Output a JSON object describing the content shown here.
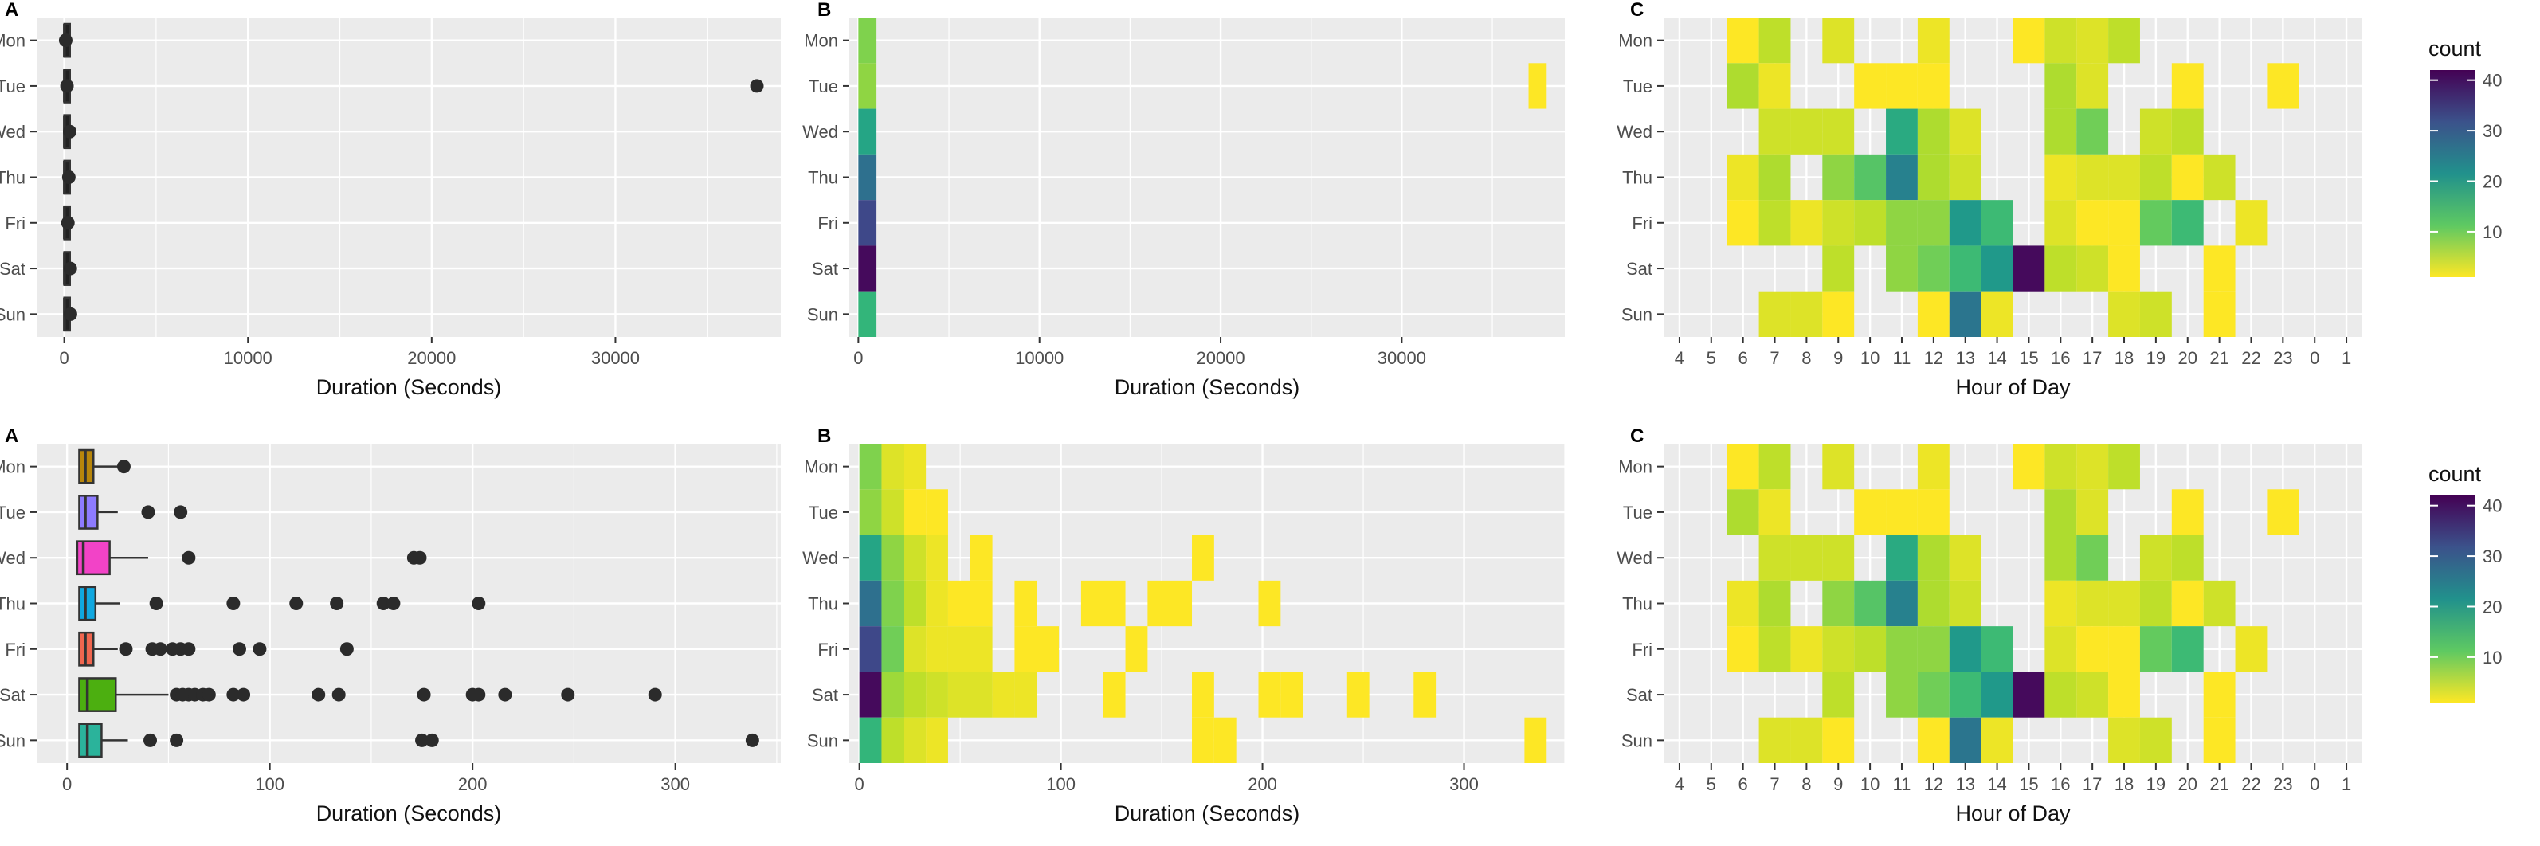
{
  "chart_data": [
    {
      "panel": "A",
      "type": "boxplot",
      "xlabel": "Duration (Seconds)",
      "xlim": [
        -1500,
        39000
      ],
      "xticks": [
        0,
        10000,
        20000,
        30000
      ],
      "categories": [
        "Mon",
        "Tue",
        "Wed",
        "Thu",
        "Fri",
        "Sat",
        "Sun"
      ],
      "boxes": [
        {
          "day": "Mon",
          "q1": 6,
          "median": 9,
          "q3": 13,
          "whisker_high": 27,
          "color": "#222222"
        },
        {
          "day": "Tue",
          "q1": 6,
          "median": 9,
          "q3": 14,
          "whisker_high": 25,
          "color": "#222222"
        },
        {
          "day": "Wed",
          "q1": 5,
          "median": 9,
          "q3": 21,
          "whisker_high": 40,
          "color": "#222222"
        },
        {
          "day": "Thu",
          "q1": 6,
          "median": 9,
          "q3": 14,
          "whisker_high": 26,
          "color": "#222222"
        },
        {
          "day": "Fri",
          "q1": 6,
          "median": 9,
          "q3": 13,
          "whisker_high": 25,
          "color": "#222222"
        },
        {
          "day": "Sat",
          "q1": 6,
          "median": 10,
          "q3": 24,
          "whisker_high": 50,
          "color": "#222222"
        },
        {
          "day": "Sun",
          "q1": 6,
          "median": 10,
          "q3": 17,
          "whisker_high": 30,
          "color": "#222222"
        }
      ],
      "outliers": [
        {
          "day": "Mon",
          "x": 80
        },
        {
          "day": "Tue",
          "x": 150
        },
        {
          "day": "Tue",
          "x": 37700
        },
        {
          "day": "Wed",
          "x": 300
        },
        {
          "day": "Thu",
          "x": 250
        },
        {
          "day": "Fri",
          "x": 200
        },
        {
          "day": "Sat",
          "x": 330
        },
        {
          "day": "Sun",
          "x": 340
        }
      ]
    },
    {
      "panel": "B",
      "type": "heatmap",
      "xlabel": "Duration (Seconds)",
      "xlim": [
        -500,
        39000
      ],
      "xticks": [
        0,
        10000,
        20000,
        30000
      ],
      "categories": [
        "Mon",
        "Tue",
        "Wed",
        "Thu",
        "Fri",
        "Sat",
        "Sun"
      ],
      "bin_width": 1000,
      "count_range": [
        1,
        42
      ],
      "cells": [
        {
          "day": "Mon",
          "x0": 0,
          "count": 9
        },
        {
          "day": "Tue",
          "x0": 0,
          "count": 8
        },
        {
          "day": "Wed",
          "x0": 0,
          "count": 18
        },
        {
          "day": "Thu",
          "x0": 0,
          "count": 27
        },
        {
          "day": "Fri",
          "x0": 0,
          "count": 33
        },
        {
          "day": "Sat",
          "x0": 0,
          "count": 41
        },
        {
          "day": "Sun",
          "x0": 0,
          "count": 15
        },
        {
          "day": "Tue",
          "x0": 37000,
          "count": 1
        }
      ]
    },
    {
      "panel": "C",
      "type": "heatmap",
      "xlabel": "Hour of Day",
      "hours": [
        "4",
        "5",
        "6",
        "7",
        "8",
        "9",
        "10",
        "11",
        "12",
        "13",
        "14",
        "15",
        "16",
        "17",
        "18",
        "19",
        "20",
        "21",
        "22",
        "23",
        "0",
        "1"
      ],
      "categories": [
        "Mon",
        "Tue",
        "Wed",
        "Thu",
        "Fri",
        "Sat",
        "Sun"
      ],
      "count_range": [
        1,
        42
      ],
      "counts": {
        "Mon": [
          0,
          0,
          1,
          5,
          0,
          3,
          0,
          0,
          2,
          0,
          0,
          1,
          4,
          3,
          5,
          0,
          0,
          0,
          0,
          0,
          0,
          0
        ],
        "Tue": [
          0,
          0,
          6,
          2,
          0,
          0,
          1,
          1,
          1,
          0,
          0,
          0,
          6,
          3,
          0,
          0,
          1,
          0,
          0,
          1,
          0,
          0
        ],
        "Wed": [
          0,
          0,
          0,
          4,
          4,
          4,
          0,
          17,
          6,
          3,
          0,
          0,
          6,
          10,
          0,
          4,
          5,
          0,
          0,
          0,
          0,
          0
        ],
        "Thu": [
          0,
          0,
          2,
          6,
          0,
          8,
          12,
          24,
          6,
          4,
          0,
          0,
          2,
          3,
          3,
          5,
          1,
          4,
          0,
          0,
          0,
          0
        ],
        "Fri": [
          0,
          0,
          1,
          5,
          2,
          4,
          5,
          8,
          8,
          20,
          14,
          0,
          3,
          1,
          1,
          11,
          14,
          0,
          2,
          0,
          0,
          0
        ],
        "Sat": [
          0,
          0,
          0,
          0,
          0,
          5,
          0,
          8,
          10,
          14,
          20,
          41,
          5,
          4,
          1,
          0,
          0,
          1,
          0,
          0,
          0,
          0
        ],
        "Sun": [
          0,
          0,
          0,
          3,
          3,
          1,
          0,
          0,
          1,
          26,
          2,
          0,
          0,
          0,
          3,
          4,
          0,
          1,
          0,
          0,
          0,
          0
        ]
      }
    },
    {
      "panel": "A",
      "type": "boxplot",
      "xlabel": "Duration (Seconds)",
      "xlim": [
        -15,
        352
      ],
      "xticks": [
        0,
        100,
        200,
        300
      ],
      "categories": [
        "Mon",
        "Tue",
        "Wed",
        "Thu",
        "Fri",
        "Sat",
        "Sun"
      ],
      "boxes": [
        {
          "day": "Mon",
          "q1": 6,
          "median": 9,
          "q3": 13,
          "whisker_high": 27,
          "color": "#b8860b"
        },
        {
          "day": "Tue",
          "q1": 6,
          "median": 9,
          "q3": 15,
          "whisker_high": 25,
          "color": "#8d7bff"
        },
        {
          "day": "Wed",
          "q1": 5,
          "median": 8,
          "q3": 21,
          "whisker_high": 40,
          "color": "#f243c7"
        },
        {
          "day": "Thu",
          "q1": 6,
          "median": 9,
          "q3": 14,
          "whisker_high": 26,
          "color": "#10a8e0"
        },
        {
          "day": "Fri",
          "q1": 6,
          "median": 9,
          "q3": 13,
          "whisker_high": 25,
          "color": "#f0664f"
        },
        {
          "day": "Sat",
          "q1": 6,
          "median": 10,
          "q3": 24,
          "whisker_high": 50,
          "color": "#4caf10"
        },
        {
          "day": "Sun",
          "q1": 6,
          "median": 10,
          "q3": 17,
          "whisker_high": 30,
          "color": "#2bb39b"
        }
      ],
      "outliers": [
        {
          "day": "Mon",
          "x": 28
        },
        {
          "day": "Tue",
          "x": 40
        },
        {
          "day": "Tue",
          "x": 56
        },
        {
          "day": "Wed",
          "x": 60
        },
        {
          "day": "Wed",
          "x": 171
        },
        {
          "day": "Wed",
          "x": 174
        },
        {
          "day": "Thu",
          "x": 44
        },
        {
          "day": "Thu",
          "x": 82
        },
        {
          "day": "Thu",
          "x": 113
        },
        {
          "day": "Thu",
          "x": 133
        },
        {
          "day": "Thu",
          "x": 156
        },
        {
          "day": "Thu",
          "x": 161
        },
        {
          "day": "Thu",
          "x": 203
        },
        {
          "day": "Fri",
          "x": 29
        },
        {
          "day": "Fri",
          "x": 42
        },
        {
          "day": "Fri",
          "x": 46
        },
        {
          "day": "Fri",
          "x": 52
        },
        {
          "day": "Fri",
          "x": 56
        },
        {
          "day": "Fri",
          "x": 60
        },
        {
          "day": "Fri",
          "x": 85
        },
        {
          "day": "Fri",
          "x": 95
        },
        {
          "day": "Fri",
          "x": 138
        },
        {
          "day": "Sat",
          "x": 54
        },
        {
          "day": "Sat",
          "x": 57
        },
        {
          "day": "Sat",
          "x": 60
        },
        {
          "day": "Sat",
          "x": 63
        },
        {
          "day": "Sat",
          "x": 67
        },
        {
          "day": "Sat",
          "x": 70
        },
        {
          "day": "Sat",
          "x": 82
        },
        {
          "day": "Sat",
          "x": 87
        },
        {
          "day": "Sat",
          "x": 124
        },
        {
          "day": "Sat",
          "x": 134
        },
        {
          "day": "Sat",
          "x": 176
        },
        {
          "day": "Sat",
          "x": 200
        },
        {
          "day": "Sat",
          "x": 203
        },
        {
          "day": "Sat",
          "x": 216
        },
        {
          "day": "Sat",
          "x": 247
        },
        {
          "day": "Sat",
          "x": 290
        },
        {
          "day": "Sun",
          "x": 41
        },
        {
          "day": "Sun",
          "x": 54
        },
        {
          "day": "Sun",
          "x": 175
        },
        {
          "day": "Sun",
          "x": 180
        },
        {
          "day": "Sun",
          "x": 338
        }
      ]
    },
    {
      "panel": "B",
      "type": "heatmap",
      "xlabel": "Duration (Seconds)",
      "xlim": [
        -5,
        350
      ],
      "xticks": [
        0,
        100,
        200,
        300
      ],
      "categories": [
        "Mon",
        "Tue",
        "Wed",
        "Thu",
        "Fri",
        "Sat",
        "Sun"
      ],
      "bin_width": 11,
      "count_range": [
        1,
        42
      ],
      "cells": [
        {
          "day": "Mon",
          "x0": 0,
          "count": 9
        },
        {
          "day": "Mon",
          "x0": 11,
          "count": 3
        },
        {
          "day": "Mon",
          "x0": 22,
          "count": 2
        },
        {
          "day": "Tue",
          "x0": 0,
          "count": 8
        },
        {
          "day": "Tue",
          "x0": 11,
          "count": 4
        },
        {
          "day": "Tue",
          "x0": 22,
          "count": 1
        },
        {
          "day": "Tue",
          "x0": 33,
          "count": 1
        },
        {
          "day": "Wed",
          "x0": 0,
          "count": 18
        },
        {
          "day": "Wed",
          "x0": 11,
          "count": 8
        },
        {
          "day": "Wed",
          "x0": 22,
          "count": 4
        },
        {
          "day": "Wed",
          "x0": 33,
          "count": 2
        },
        {
          "day": "Wed",
          "x0": 55,
          "count": 1
        },
        {
          "day": "Wed",
          "x0": 165,
          "count": 1
        },
        {
          "day": "Thu",
          "x0": 0,
          "count": 27
        },
        {
          "day": "Thu",
          "x0": 11,
          "count": 9
        },
        {
          "day": "Thu",
          "x0": 22,
          "count": 5
        },
        {
          "day": "Thu",
          "x0": 33,
          "count": 2
        },
        {
          "day": "Thu",
          "x0": 44,
          "count": 1
        },
        {
          "day": "Thu",
          "x0": 55,
          "count": 1
        },
        {
          "day": "Thu",
          "x0": 77,
          "count": 1
        },
        {
          "day": "Thu",
          "x0": 110,
          "count": 1
        },
        {
          "day": "Thu",
          "x0": 121,
          "count": 1
        },
        {
          "day": "Thu",
          "x0": 143,
          "count": 1
        },
        {
          "day": "Thu",
          "x0": 154,
          "count": 1
        },
        {
          "day": "Thu",
          "x0": 198,
          "count": 1
        },
        {
          "day": "Fri",
          "x0": 0,
          "count": 33
        },
        {
          "day": "Fri",
          "x0": 11,
          "count": 10
        },
        {
          "day": "Fri",
          "x0": 22,
          "count": 3
        },
        {
          "day": "Fri",
          "x0": 33,
          "count": 2
        },
        {
          "day": "Fri",
          "x0": 44,
          "count": 2
        },
        {
          "day": "Fri",
          "x0": 55,
          "count": 2
        },
        {
          "day": "Fri",
          "x0": 77,
          "count": 1
        },
        {
          "day": "Fri",
          "x0": 88,
          "count": 1
        },
        {
          "day": "Fri",
          "x0": 132,
          "count": 1
        },
        {
          "day": "Sat",
          "x0": 0,
          "count": 41
        },
        {
          "day": "Sat",
          "x0": 11,
          "count": 7
        },
        {
          "day": "Sat",
          "x0": 22,
          "count": 5
        },
        {
          "day": "Sat",
          "x0": 33,
          "count": 4
        },
        {
          "day": "Sat",
          "x0": 44,
          "count": 3
        },
        {
          "day": "Sat",
          "x0": 55,
          "count": 3
        },
        {
          "day": "Sat",
          "x0": 66,
          "count": 2
        },
        {
          "day": "Sat",
          "x0": 77,
          "count": 2
        },
        {
          "day": "Sat",
          "x0": 121,
          "count": 1
        },
        {
          "day": "Sat",
          "x0": 165,
          "count": 1
        },
        {
          "day": "Sat",
          "x0": 198,
          "count": 1
        },
        {
          "day": "Sat",
          "x0": 209,
          "count": 1
        },
        {
          "day": "Sat",
          "x0": 242,
          "count": 1
        },
        {
          "day": "Sat",
          "x0": 275,
          "count": 1
        },
        {
          "day": "Sun",
          "x0": 0,
          "count": 15
        },
        {
          "day": "Sun",
          "x0": 11,
          "count": 5
        },
        {
          "day": "Sun",
          "x0": 22,
          "count": 3
        },
        {
          "day": "Sun",
          "x0": 33,
          "count": 2
        },
        {
          "day": "Sun",
          "x0": 165,
          "count": 1
        },
        {
          "day": "Sun",
          "x0": 176,
          "count": 1
        },
        {
          "day": "Sun",
          "x0": 330,
          "count": 1
        }
      ]
    },
    {
      "panel": "C",
      "type": "heatmap",
      "xlabel": "Hour of Day",
      "hours": [
        "4",
        "5",
        "6",
        "7",
        "8",
        "9",
        "10",
        "11",
        "12",
        "13",
        "14",
        "15",
        "16",
        "17",
        "18",
        "19",
        "20",
        "21",
        "22",
        "23",
        "0",
        "1"
      ],
      "categories": [
        "Mon",
        "Tue",
        "Wed",
        "Thu",
        "Fri",
        "Sat",
        "Sun"
      ],
      "count_range": [
        1,
        42
      ],
      "counts": {
        "Mon": [
          0,
          0,
          1,
          5,
          0,
          3,
          0,
          0,
          2,
          0,
          0,
          1,
          4,
          3,
          5,
          0,
          0,
          0,
          0,
          0,
          0,
          0
        ],
        "Tue": [
          0,
          0,
          6,
          2,
          0,
          0,
          1,
          1,
          1,
          0,
          0,
          0,
          6,
          3,
          0,
          0,
          1,
          0,
          0,
          1,
          0,
          0
        ],
        "Wed": [
          0,
          0,
          0,
          4,
          4,
          4,
          0,
          17,
          6,
          3,
          0,
          0,
          6,
          10,
          0,
          4,
          5,
          0,
          0,
          0,
          0,
          0
        ],
        "Thu": [
          0,
          0,
          2,
          6,
          0,
          8,
          12,
          24,
          6,
          4,
          0,
          0,
          2,
          3,
          3,
          5,
          1,
          4,
          0,
          0,
          0,
          0
        ],
        "Fri": [
          0,
          0,
          1,
          5,
          2,
          4,
          5,
          8,
          8,
          20,
          14,
          0,
          3,
          1,
          1,
          11,
          14,
          0,
          2,
          0,
          0,
          0
        ],
        "Sat": [
          0,
          0,
          0,
          0,
          0,
          5,
          0,
          8,
          10,
          14,
          20,
          41,
          5,
          4,
          1,
          0,
          0,
          1,
          0,
          0,
          0,
          0
        ],
        "Sun": [
          0,
          0,
          0,
          3,
          3,
          1,
          0,
          0,
          1,
          26,
          2,
          0,
          0,
          0,
          3,
          4,
          0,
          1,
          0,
          0,
          0,
          0
        ]
      }
    }
  ],
  "legends": [
    {
      "title": "count",
      "ticks": [
        "10",
        "20",
        "30",
        "40"
      ],
      "tick_values": [
        10,
        20,
        30,
        40
      ],
      "range": [
        1,
        42
      ]
    },
    {
      "title": "count",
      "ticks": [
        "10",
        "20",
        "30",
        "40"
      ],
      "tick_values": [
        10,
        20,
        30,
        40
      ],
      "range": [
        1,
        42
      ]
    }
  ]
}
